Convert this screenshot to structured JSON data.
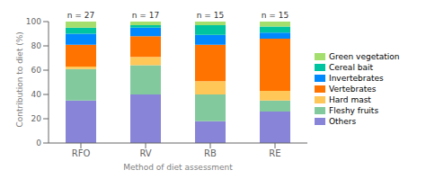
{
  "chart_data": {
    "type": "bar",
    "stacked": true,
    "categories": [
      "RFO",
      "RV",
      "RB",
      "RE"
    ],
    "annotations": [
      "n = 27",
      "n = 17",
      "n = 15",
      "n = 15"
    ],
    "xlabel": "Method of diet assessment",
    "ylabel": "Contribution to diet (%)",
    "ylim": [
      0,
      100
    ],
    "yticks": [
      0,
      20,
      40,
      60,
      80,
      100
    ],
    "grid": false,
    "legend": "right",
    "series": [
      {
        "name": "Others",
        "values": [
          35,
          40,
          18,
          26
        ]
      },
      {
        "name": "Fleshy fruits",
        "values": [
          26,
          24,
          22,
          9
        ]
      },
      {
        "name": "Hard mast",
        "values": [
          2,
          7,
          11,
          8
        ]
      },
      {
        "name": "Vertebrates",
        "values": [
          18,
          17,
          30,
          43
        ]
      },
      {
        "name": "Invertebrates",
        "values": [
          9,
          7,
          8,
          5
        ]
      },
      {
        "name": "Cereal bait",
        "values": [
          5,
          2,
          8,
          5
        ]
      },
      {
        "name": "Green vegetation",
        "values": [
          5,
          3,
          3,
          4
        ]
      }
    ]
  }
}
